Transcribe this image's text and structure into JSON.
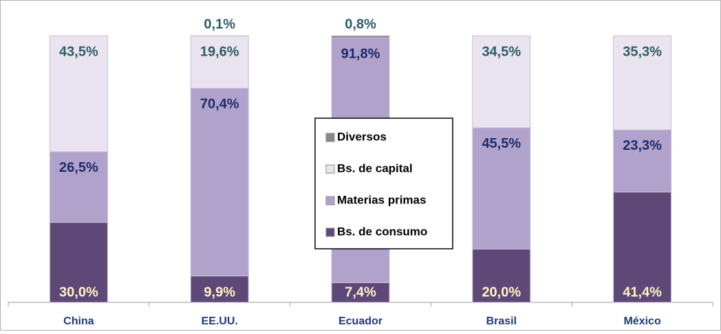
{
  "chart_data": {
    "type": "stacked_bar",
    "categories": [
      "China",
      "EE.UU.",
      "Ecuador",
      "Brasil",
      "México"
    ],
    "series": [
      {
        "name": "Bs. de consumo",
        "color": "#5e4878",
        "label_color": "#fff3c4",
        "values": [
          30.0,
          9.9,
          7.4,
          20.0,
          41.4
        ],
        "value_labels": [
          "30,0%",
          "9,9%",
          "7,4%",
          "20,0%",
          "41,4%"
        ]
      },
      {
        "name": "Materias primas",
        "color": "#b1a2cb",
        "label_color": "#1c2b6b",
        "values": [
          26.5,
          70.4,
          91.8,
          45.5,
          23.3
        ],
        "value_labels": [
          "26,5%",
          "70,4%",
          "91,8%",
          "45,5%",
          "23,3%"
        ]
      },
      {
        "name": "Bs. de capital",
        "color": "#e9e4f0",
        "label_color": "#2d5d66",
        "values": [
          43.5,
          19.6,
          0,
          34.5,
          35.3
        ],
        "value_labels": [
          "43,5%",
          "19,6%",
          null,
          "34,5%",
          "35,3%"
        ]
      },
      {
        "name": "Diversos",
        "color": "#8c8490",
        "label_color": "#2d5d66",
        "values": [
          0,
          0.1,
          0.8,
          0,
          0
        ],
        "value_labels": [
          null,
          "0,1%",
          "0,8%",
          null,
          null
        ]
      }
    ],
    "ylim": [
      0,
      100
    ]
  }
}
